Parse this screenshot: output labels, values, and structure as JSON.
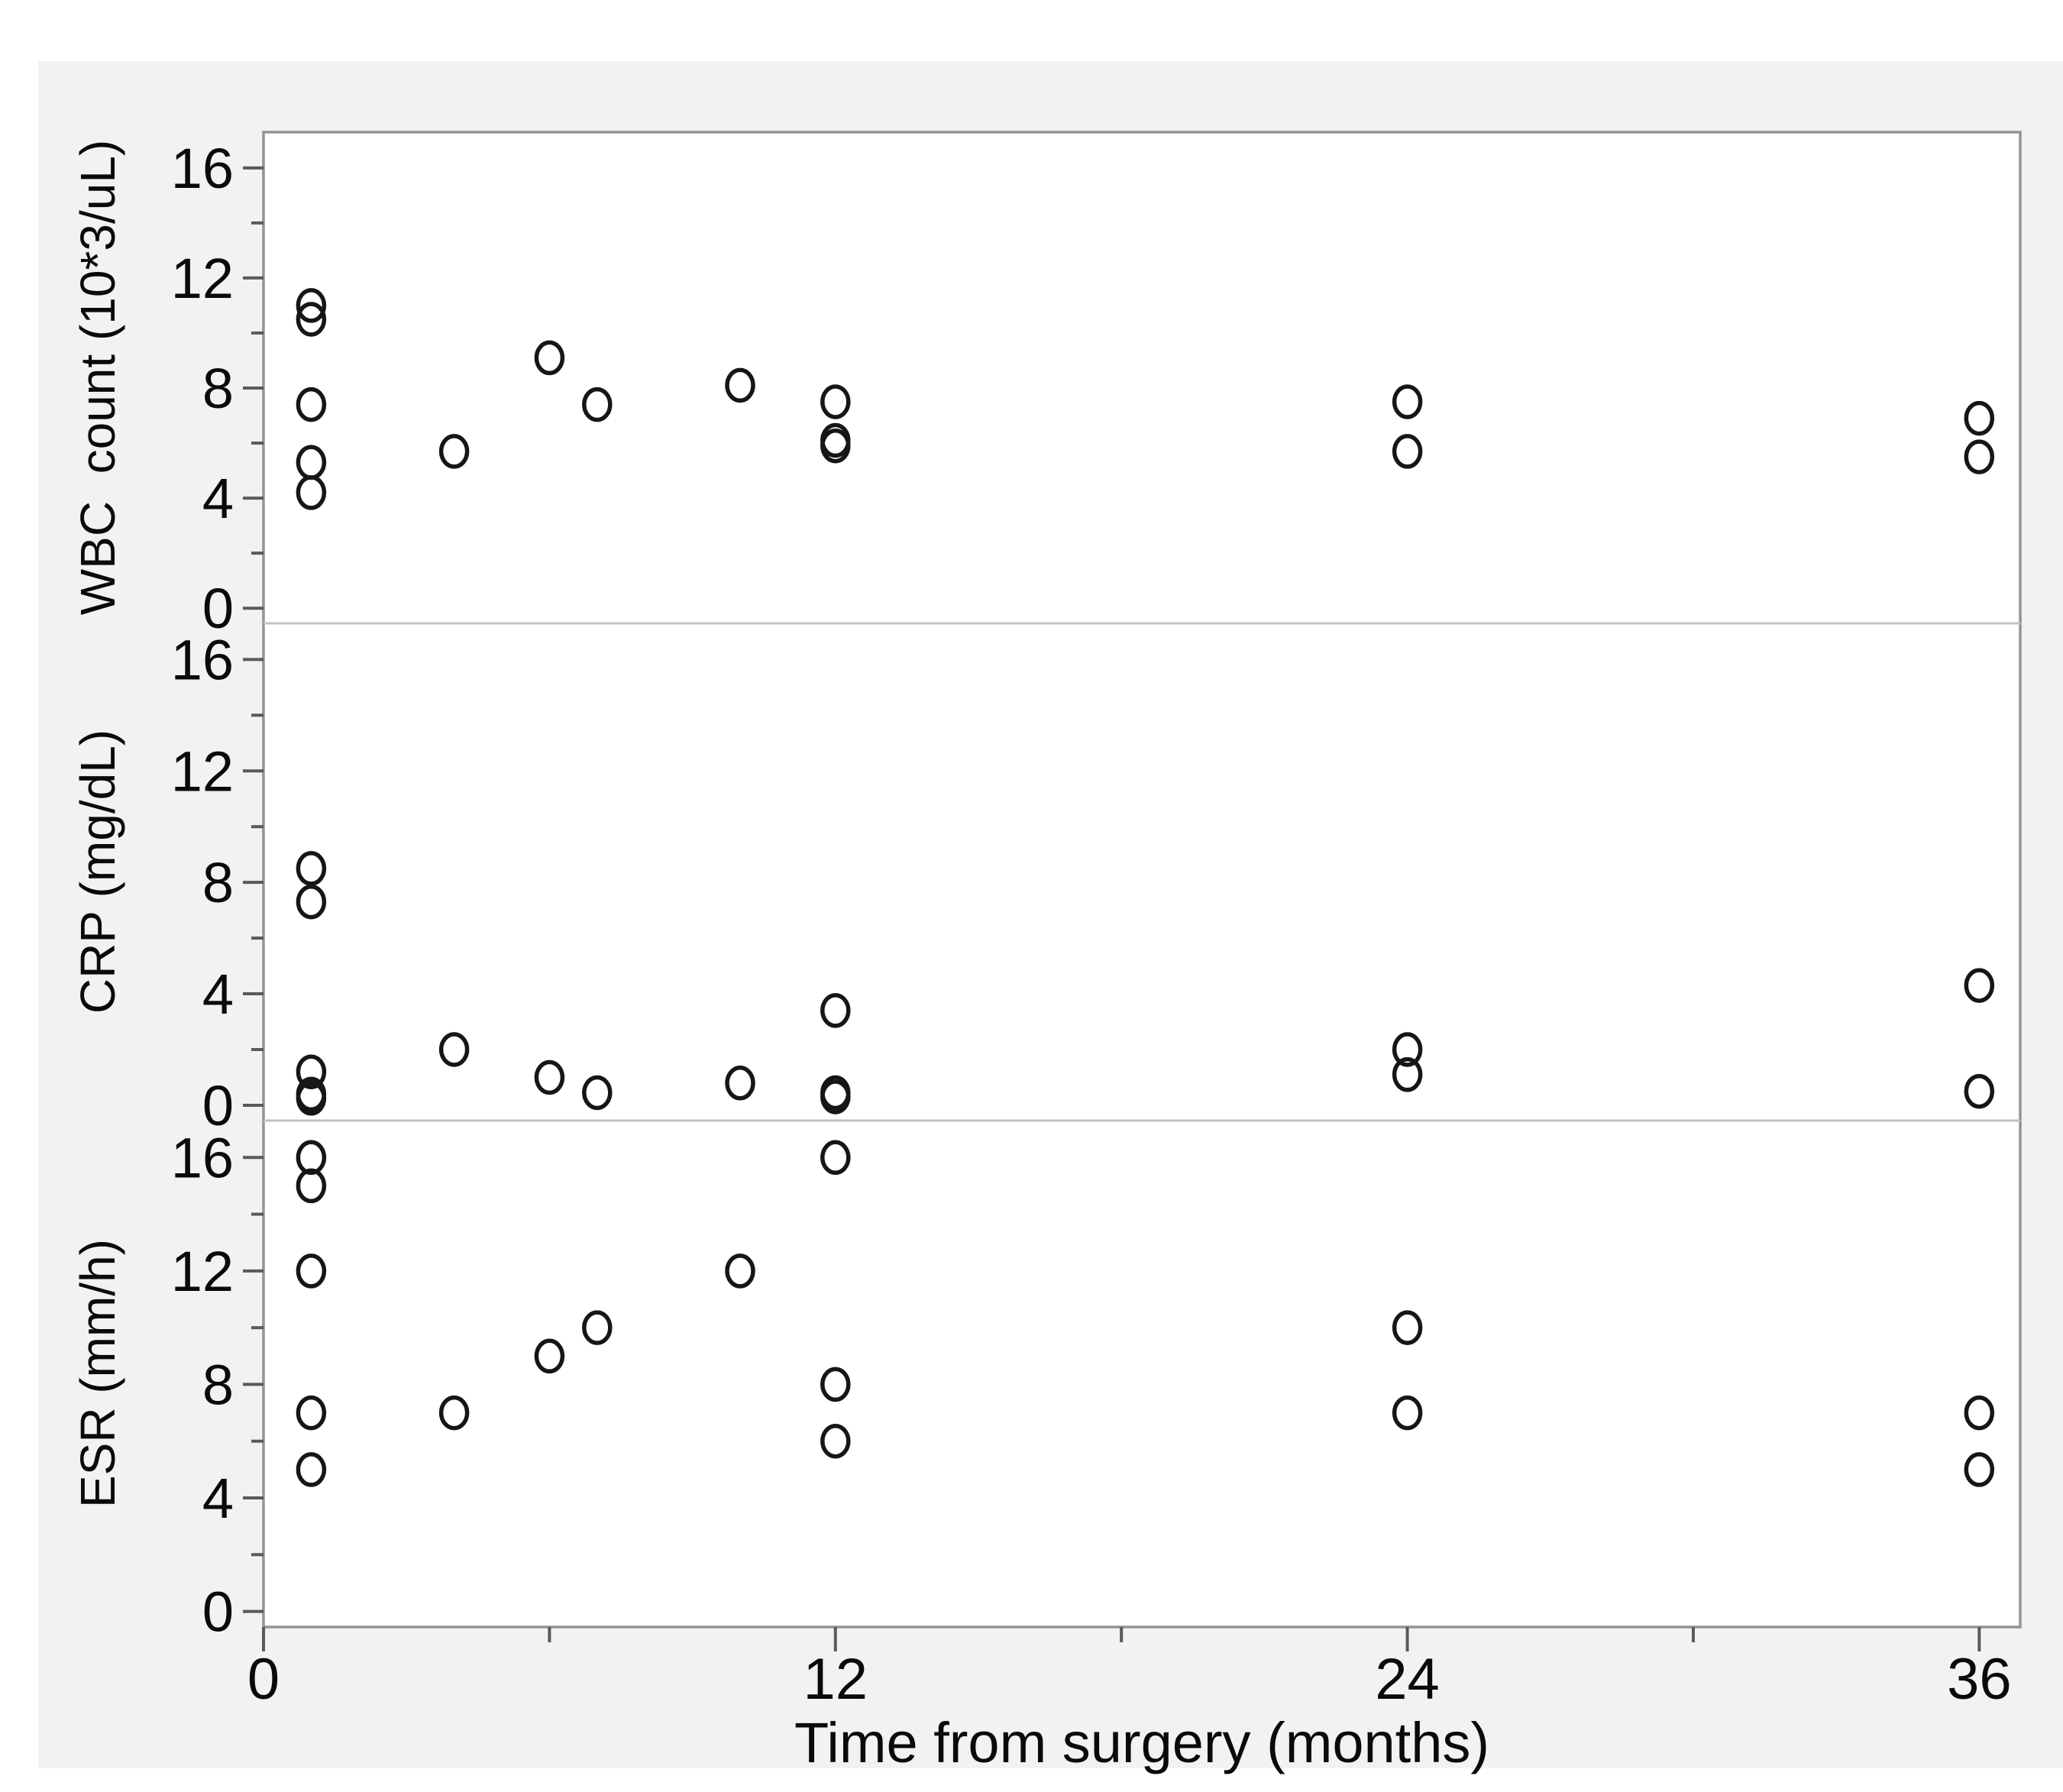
{
  "colors": {
    "page_background": "#ffffff",
    "canvas_background": "#f3f2f0",
    "plot_background": "#ffffff",
    "frame_stroke": "#949494",
    "panel_divider": "#c2c2c2",
    "tick_stroke": "#5a5a5a",
    "label_color": "#0a0a0a",
    "marker_stroke": "#161616"
  },
  "chart_data": {
    "type": "scatter",
    "title": "",
    "xlabel": "Time from surgery (months)",
    "xlim": [
      0,
      36.86
    ],
    "xticks": [
      0,
      12,
      24,
      36
    ],
    "xminorticks": [
      6,
      18,
      30
    ],
    "ylim": [
      -0.55,
      17.3
    ],
    "yticks": [
      0,
      4,
      8,
      12,
      16
    ],
    "yminorticks": [
      2,
      6,
      10,
      14
    ],
    "grid": "off",
    "legend": "none",
    "marker": "open-circle",
    "panels": [
      {
        "id": "wbc",
        "ylabel": "WBC  count (10*3/uL)",
        "points": [
          [
            1,
            11.0
          ],
          [
            1,
            10.5
          ],
          [
            1,
            7.4
          ],
          [
            1,
            5.3
          ],
          [
            1,
            4.2
          ],
          [
            4,
            5.7
          ],
          [
            6,
            9.1
          ],
          [
            7,
            7.4
          ],
          [
            10,
            8.1
          ],
          [
            12,
            7.5
          ],
          [
            12,
            6.1
          ],
          [
            12,
            5.9
          ],
          [
            24,
            7.5
          ],
          [
            24,
            5.7
          ],
          [
            36,
            6.9
          ],
          [
            36,
            5.5
          ]
        ]
      },
      {
        "id": "crp",
        "ylabel": "CRP (mg/dL)",
        "points": [
          [
            1,
            8.5
          ],
          [
            1,
            7.3
          ],
          [
            1,
            1.2
          ],
          [
            1,
            0.4
          ],
          [
            1,
            0.25
          ],
          [
            4,
            2.0
          ],
          [
            6,
            1.0
          ],
          [
            7,
            0.45
          ],
          [
            10,
            0.8
          ],
          [
            12,
            3.4
          ],
          [
            12,
            0.45
          ],
          [
            12,
            0.3
          ],
          [
            24,
            2.0
          ],
          [
            24,
            1.1
          ],
          [
            36,
            4.3
          ],
          [
            36,
            0.5
          ]
        ]
      },
      {
        "id": "esr",
        "ylabel": "ESR (mm/h)",
        "points": [
          [
            1,
            16
          ],
          [
            1,
            15
          ],
          [
            1,
            12
          ],
          [
            1,
            7
          ],
          [
            1,
            5
          ],
          [
            4,
            7
          ],
          [
            6,
            9
          ],
          [
            7,
            10
          ],
          [
            10,
            12
          ],
          [
            12,
            16
          ],
          [
            12,
            8
          ],
          [
            12,
            6
          ],
          [
            24,
            10
          ],
          [
            24,
            7
          ],
          [
            36,
            7
          ],
          [
            36,
            5
          ]
        ]
      }
    ]
  }
}
